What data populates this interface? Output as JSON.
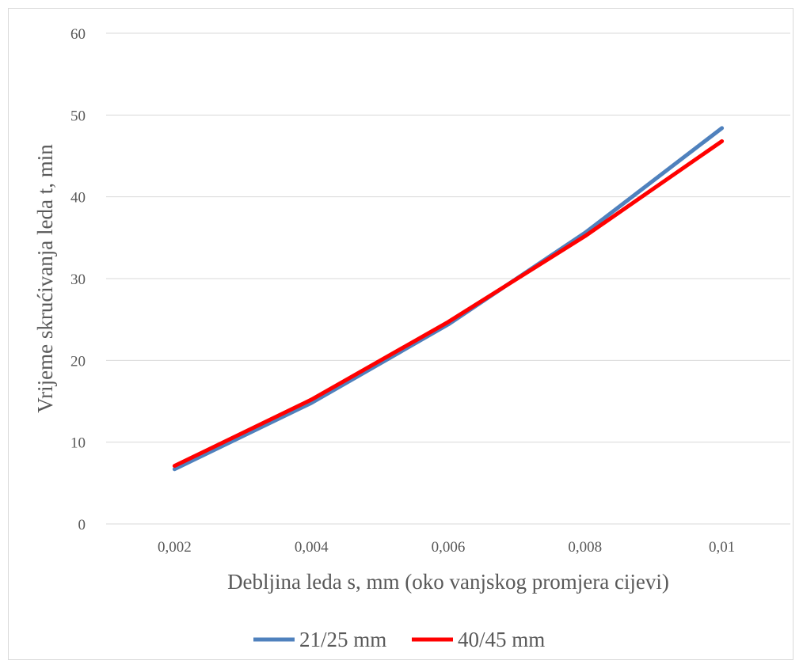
{
  "chart_data": {
    "type": "line",
    "title": "",
    "xlabel": "Debljina leda s, mm (oko vanjskog promjera cijevi)",
    "ylabel": "Vrijeme skrućivanja leda t, min",
    "categories": [
      "0,002",
      "0,004",
      "0,006",
      "0,008",
      "0,01"
    ],
    "yticks": [
      "0",
      "10",
      "20",
      "30",
      "40",
      "50",
      "60"
    ],
    "ylim": [
      0,
      60
    ],
    "grid": true,
    "legend_position": "bottom",
    "series": [
      {
        "name": "21/25 mm",
        "color": "#4f81bd",
        "values": [
          6.7,
          14.8,
          24.4,
          35.6,
          48.4
        ]
      },
      {
        "name": "40/45 mm",
        "color": "#ff0000",
        "values": [
          7.1,
          15.2,
          24.7,
          35.2,
          46.8
        ]
      }
    ]
  }
}
